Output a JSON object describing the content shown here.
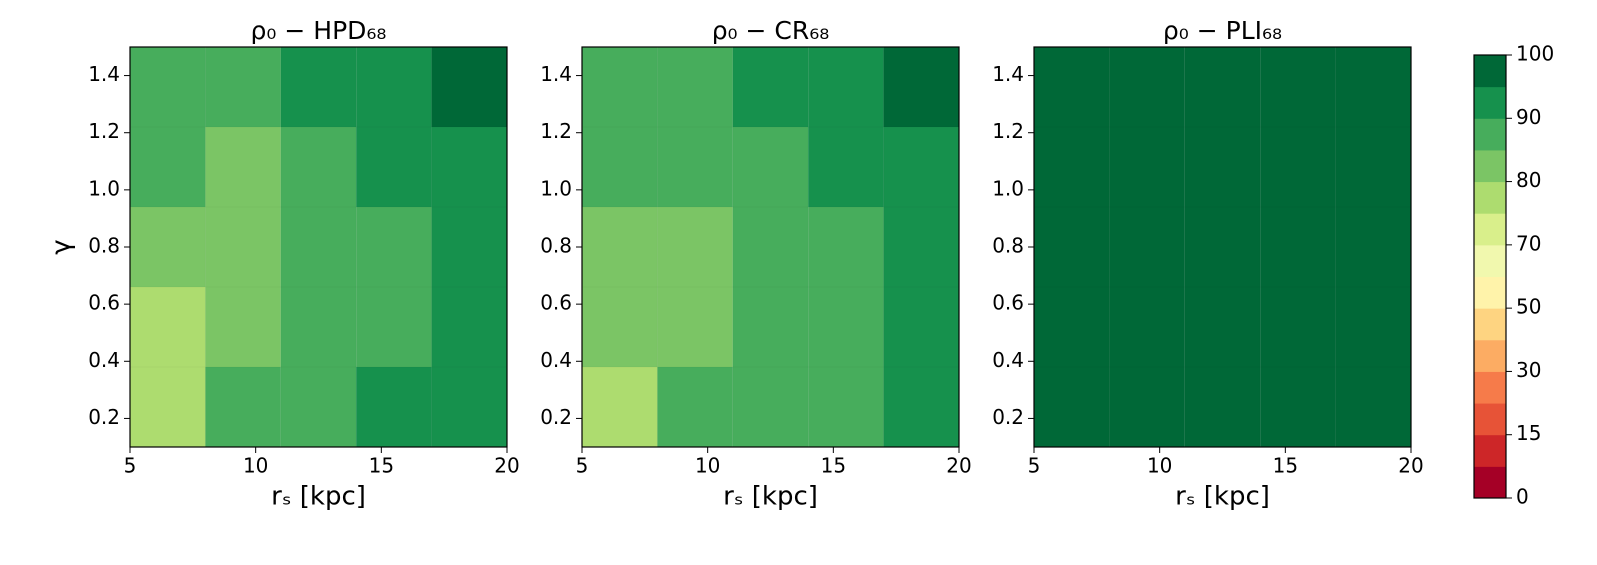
{
  "chart_data": [
    {
      "type": "heatmap",
      "title": "ρ₀ − HPD₆₈",
      "xlabel": "rₛ [kpc]",
      "ylabel": "γ",
      "x_edges": [
        5,
        8,
        11,
        14,
        17,
        20
      ],
      "y_edges": [
        0.1,
        0.38,
        0.66,
        0.94,
        1.22,
        1.5
      ],
      "values": [
        [
          77,
          87,
          87,
          92,
          92
        ],
        [
          77,
          82,
          87,
          87,
          92
        ],
        [
          82,
          82,
          87,
          87,
          92
        ],
        [
          87,
          82,
          87,
          92,
          92
        ],
        [
          87,
          87,
          92,
          92,
          97
        ]
      ],
      "xlim": [
        5,
        20
      ],
      "ylim": [
        0.1,
        1.5
      ],
      "xticks": [
        5,
        10,
        15,
        20
      ],
      "yticks": [
        0.2,
        0.4,
        0.6,
        0.8,
        {
          "value": 1,
          "label": "1.0"
        },
        1.2,
        1.4
      ]
    },
    {
      "type": "heatmap",
      "title": "ρ₀ − CR₆₈",
      "xlabel": "rₛ [kpc]",
      "x_edges": [
        5,
        8,
        11,
        14,
        17,
        20
      ],
      "y_edges": [
        0.1,
        0.38,
        0.66,
        0.94,
        1.22,
        1.5
      ],
      "values": [
        [
          77,
          87,
          87,
          87,
          92
        ],
        [
          82,
          82,
          87,
          87,
          92
        ],
        [
          82,
          82,
          87,
          87,
          92
        ],
        [
          87,
          87,
          87,
          92,
          92
        ],
        [
          87,
          87,
          92,
          92,
          97
        ]
      ],
      "xlim": [
        5,
        20
      ],
      "ylim": [
        0.1,
        1.5
      ],
      "xticks": [
        5,
        10,
        15,
        20
      ],
      "yticks": [
        0.2,
        0.4,
        0.6,
        0.8,
        {
          "value": 1,
          "label": "1.0"
        },
        1.2,
        1.4
      ]
    },
    {
      "type": "heatmap",
      "title": "ρ₀ − PLI₆₈",
      "xlabel": "rₛ [kpc]",
      "x_edges": [
        5,
        8,
        11,
        14,
        17,
        20
      ],
      "y_edges": [
        0.1,
        0.38,
        0.66,
        0.94,
        1.22,
        1.5
      ],
      "values": [
        [
          100,
          100,
          100,
          100,
          100
        ],
        [
          100,
          100,
          100,
          100,
          100
        ],
        [
          100,
          100,
          100,
          100,
          100
        ],
        [
          100,
          100,
          100,
          100,
          100
        ],
        [
          100,
          100,
          100,
          100,
          100
        ]
      ],
      "xlim": [
        5,
        20
      ],
      "ylim": [
        0.1,
        1.5
      ],
      "xticks": [
        5,
        10,
        15,
        20
      ],
      "yticks": [
        0.2,
        0.4,
        0.6,
        0.8,
        {
          "value": 1,
          "label": "1.0"
        },
        1.2,
        1.4
      ]
    },
    {
      "type": "colorbar",
      "levels": [
        0,
        7.5,
        15,
        22.5,
        30,
        40,
        50,
        60,
        70,
        75,
        80,
        85,
        90,
        95,
        100
      ],
      "colors": [
        "#a50026",
        "#cd2628",
        "#e75337",
        "#f67b4a",
        "#fcac63",
        "#fed481",
        "#fff3aa",
        "#f1f8ae",
        "#d9ef8b",
        "#addc6f",
        "#7bc565",
        "#47ad5c",
        "#16914d",
        "#006837"
      ],
      "ticks": [
        0,
        15,
        30,
        50,
        70,
        80,
        90,
        100
      ]
    }
  ]
}
